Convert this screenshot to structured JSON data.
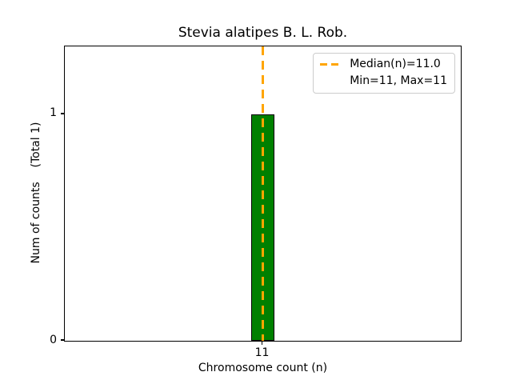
{
  "chart_data": {
    "type": "bar",
    "title": "Stevia alatipes B. L. Rob.",
    "xlabel": "Chromosome count (n)",
    "ylabel": "Num of counts    (Total 1)",
    "categories": [
      11
    ],
    "values": [
      1
    ],
    "total_counts": 1,
    "xlim": [
      10,
      12
    ],
    "ylim": [
      0,
      1.3
    ],
    "xticks": [
      11
    ],
    "yticks": [
      0,
      1
    ],
    "bar_width": 0.12,
    "bar_color": "#008000",
    "bar_edge_color": "#000000",
    "grid": false,
    "median_line": {
      "x": 11,
      "style": "dashed",
      "color": "#FFA500"
    },
    "stats": {
      "median": 11.0,
      "min": 11,
      "max": 11
    },
    "legend": {
      "position": "upper right",
      "entries": [
        {
          "label": "Median(n)=11.0",
          "handle": "orange-dashed-line"
        },
        {
          "label": "Min=11, Max=11",
          "handle": "none"
        }
      ]
    }
  }
}
